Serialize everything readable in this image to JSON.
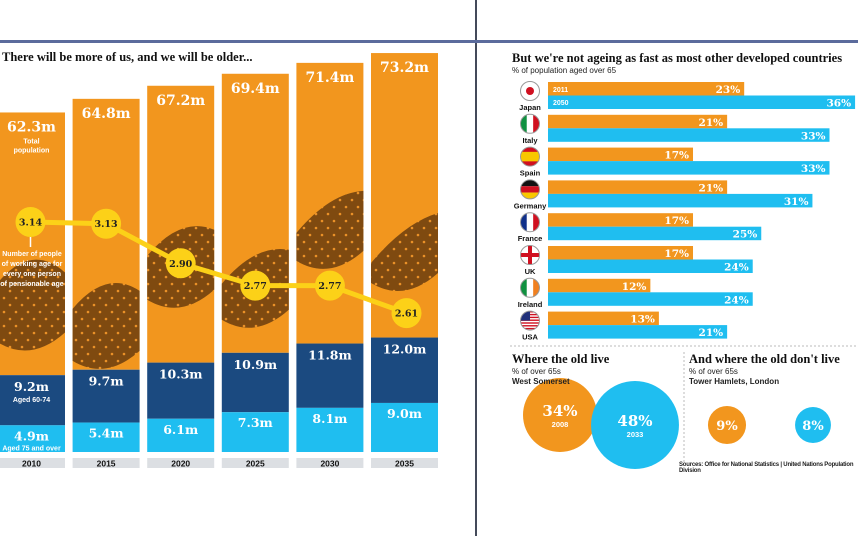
{
  "colors": {
    "orange": "#f2961e",
    "dark_blue": "#1b4a80",
    "light_blue": "#1fbef0",
    "yellow": "#fcd118",
    "year_bg": "#dcdfe3",
    "brown": "#5a3510"
  },
  "left": {
    "title": "There will be more of us, and we will be older...",
    "label_total": "Total population",
    "label_60_74": "Aged 60-74",
    "label_75": "Aged 75 and over",
    "ratio_label": "Number of people of working age for every one person of pensionable age"
  },
  "right": {
    "title": "But we're not ageing as fast as most other developed countries",
    "subtitle": "% of population aged over 65",
    "legend_2011": "2011",
    "legend_2050": "2050"
  },
  "bubbles": {
    "left_title": "Where the old live",
    "left_sub": "% of over 65s",
    "left_place": "West Somerset",
    "right_title": "And where the old don't live",
    "right_sub": "% of over 65s",
    "right_place": "Tower Hamlets, London",
    "sources": "Sources: Office for National Statistics | United Nations Population Division"
  },
  "chart_data": [
    {
      "type": "bar",
      "title": "There will be more of us, and we will be older...",
      "categories": [
        "2010",
        "2015",
        "2020",
        "2025",
        "2030",
        "2035"
      ],
      "total_population_m": [
        62.3,
        64.8,
        67.2,
        69.4,
        71.4,
        73.2
      ],
      "total_labels": [
        "62.3m",
        "64.8m",
        "67.2m",
        "69.4m",
        "71.4m",
        "73.2m"
      ],
      "series": [
        {
          "name": "Aged 60-74",
          "values": [
            9.2,
            9.7,
            10.3,
            10.9,
            11.8,
            12.0
          ],
          "labels": [
            "9.2m",
            "9.7m",
            "10.3m",
            "10.9m",
            "11.8m",
            "12.0m"
          ]
        },
        {
          "name": "Aged 75 and over",
          "values": [
            4.9,
            5.4,
            6.1,
            7.3,
            8.1,
            9.0
          ],
          "labels": [
            "4.9m",
            "5.4m",
            "6.1m",
            "7.3m",
            "8.1m",
            "9.0m"
          ]
        }
      ],
      "line": {
        "name": "Number of people of working age for every one person of pensionable age",
        "values": [
          3.14,
          3.13,
          2.9,
          2.77,
          2.77,
          2.61
        ],
        "labels": [
          "3.14",
          "3.13",
          "2.90",
          "2.77",
          "2.77",
          "2.61"
        ]
      }
    },
    {
      "type": "bar",
      "orientation": "horizontal",
      "title": "But we're not ageing as fast as most other developed countries",
      "subtitle": "% of population aged over 65",
      "categories": [
        "Japan",
        "Italy",
        "Spain",
        "Germany",
        "France",
        "UK",
        "Ireland",
        "USA"
      ],
      "flag_icons": [
        "japan-flag",
        "italy-flag",
        "spain-flag",
        "germany-flag",
        "france-flag",
        "uk-flag",
        "ireland-flag",
        "usa-flag"
      ],
      "series": [
        {
          "name": "2011",
          "values": [
            23,
            21,
            17,
            21,
            17,
            17,
            12,
            13
          ]
        },
        {
          "name": "2050",
          "values": [
            36,
            33,
            33,
            31,
            25,
            24,
            24,
            21
          ]
        }
      ],
      "xlim": [
        0,
        36
      ]
    },
    {
      "type": "bubble",
      "groups": [
        {
          "title": "Where the old live",
          "place": "West Somerset",
          "points": [
            {
              "value": 34,
              "label": "34%",
              "year": "2008"
            },
            {
              "value": 48,
              "label": "48%",
              "year": "2033"
            }
          ]
        },
        {
          "title": "And where the old don't live",
          "place": "Tower Hamlets, London",
          "points": [
            {
              "value": 9,
              "label": "9%"
            },
            {
              "value": 8,
              "label": "8%"
            }
          ]
        }
      ]
    }
  ]
}
